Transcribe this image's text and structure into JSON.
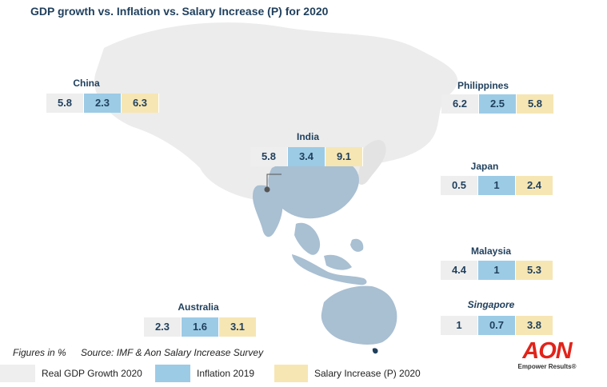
{
  "chart_data": {
    "type": "table",
    "title": "GDP growth vs. Inflation vs. Salary Increase (P) for 2020",
    "series": [
      {
        "name": "Real GDP Growth 2020",
        "color": "#eeeeee"
      },
      {
        "name": "Inflation 2019",
        "color": "#9ccbe6"
      },
      {
        "name": "Salary Increase (P) 2020",
        "color": "#f6e6b4"
      }
    ],
    "countries": [
      {
        "name": "China",
        "values": [
          "5.8",
          "2.3",
          "6.3"
        ]
      },
      {
        "name": "India",
        "values": [
          "5.8",
          "3.4",
          "9.1"
        ]
      },
      {
        "name": "Philippines",
        "values": [
          "6.2",
          "2.5",
          "5.8"
        ]
      },
      {
        "name": "Japan",
        "values": [
          "0.5",
          "1",
          "2.4"
        ]
      },
      {
        "name": "Malaysia",
        "values": [
          "4.4",
          "1",
          "5.3"
        ]
      },
      {
        "name": "Australia",
        "values": [
          "2.3",
          "1.6",
          "3.1"
        ]
      },
      {
        "name": "Singapore",
        "values": [
          "1",
          "0.7",
          "3.8"
        ]
      }
    ]
  },
  "footnote": {
    "units": "Figures in %",
    "source": "Source: IMF & Aon Salary Increase Survey"
  },
  "logo": {
    "word": "AON",
    "tagline": "Empower Results®",
    "color": "#e2231a"
  },
  "map": {
    "land_color": "#e8e8e8",
    "highlight_color": "#a9bfd2"
  }
}
